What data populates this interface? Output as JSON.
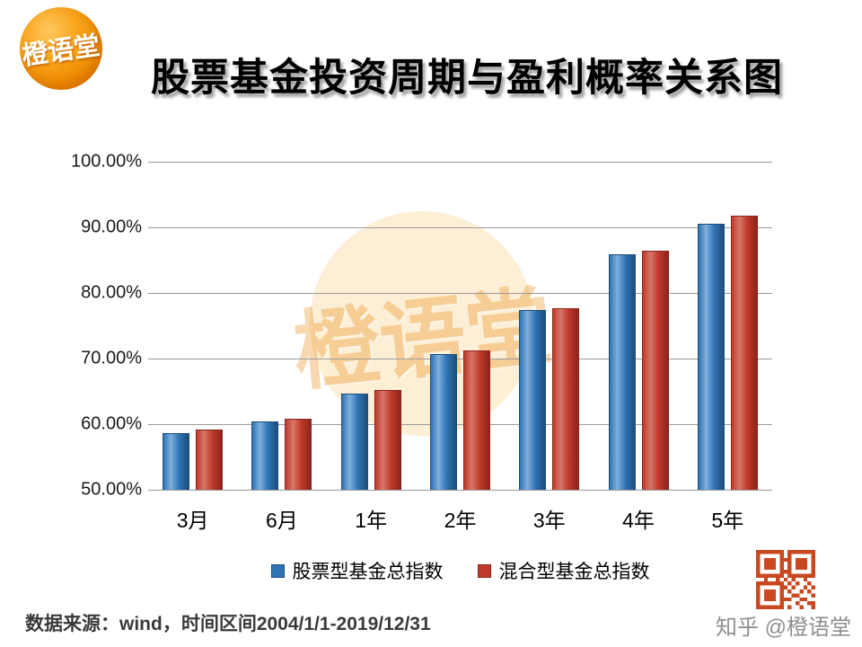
{
  "logo": {
    "text": "橙语堂"
  },
  "header": {
    "title": "股票基金投资周期与盈利概率关系图"
  },
  "watermark": {
    "text": "橙语堂"
  },
  "chart_data": {
    "type": "bar",
    "title": "股票基金投资周期与盈利概率关系图",
    "categories": [
      "3月",
      "6月",
      "1年",
      "2年",
      "3年",
      "4年",
      "5年"
    ],
    "series": [
      {
        "name": "股票型基金总指数",
        "color": "#2E74B5",
        "light": "#7FAFDC",
        "dark": "#1F4E79",
        "values": [
          58.6,
          60.4,
          64.7,
          70.7,
          77.4,
          85.9,
          90.5
        ]
      },
      {
        "name": "混合型基金总指数",
        "color": "#C03A2B",
        "light": "#D4776A",
        "dark": "#8C241B",
        "values": [
          59.2,
          60.8,
          65.2,
          71.2,
          77.7,
          86.4,
          91.8
        ]
      }
    ],
    "ylim": [
      50,
      100
    ],
    "yticks": [
      "100.00%",
      "90.00%",
      "80.00%",
      "70.00%",
      "60.00%",
      "50.00%"
    ],
    "ytick_values": [
      100,
      90,
      80,
      70,
      60,
      50
    ],
    "grid": true,
    "legend_position": "bottom",
    "unit": "percent"
  },
  "footer": {
    "source": "数据来源：wind，时间区间2004/1/1-2019/12/31",
    "credit": "知乎 @橙语堂"
  }
}
